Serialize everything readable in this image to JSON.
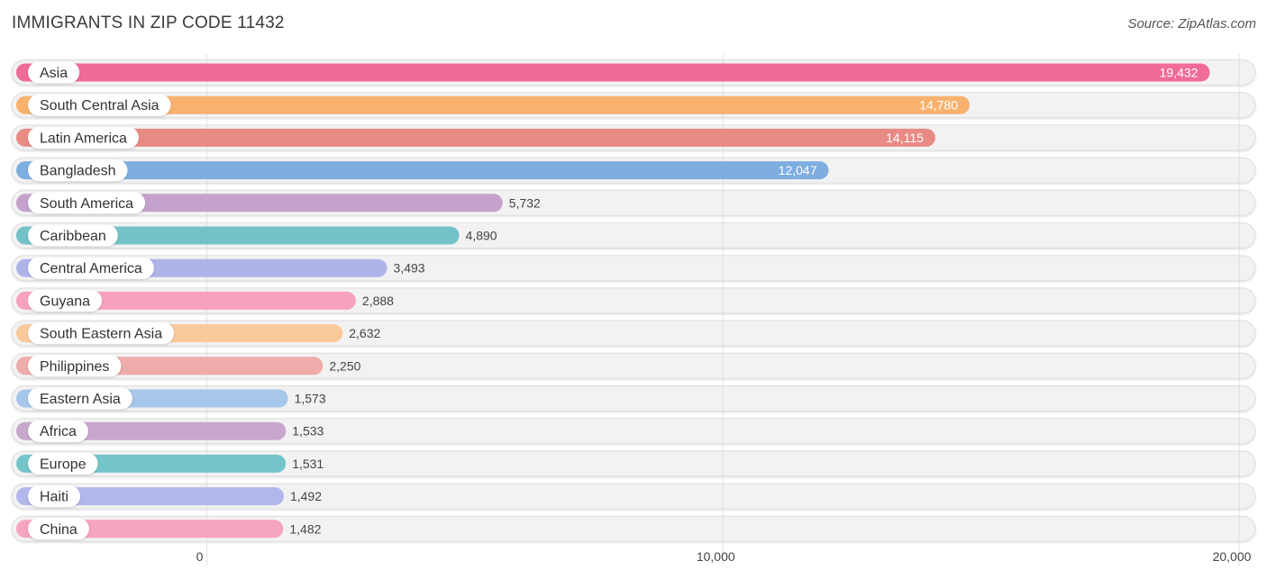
{
  "header": {
    "title": "IMMIGRANTS IN ZIP CODE 11432",
    "source": "Source: ZipAtlas.com"
  },
  "chart_data": {
    "type": "bar",
    "orientation": "horizontal",
    "title": "IMMIGRANTS IN ZIP CODE 11432",
    "xlabel": "",
    "ylabel": "",
    "xlim": [
      0,
      20000
    ],
    "ticks": [
      0,
      10000,
      20000
    ],
    "tick_labels": [
      "0",
      "10,000",
      "20,000"
    ],
    "grid": true,
    "categories": [
      "Asia",
      "South Central Asia",
      "Latin America",
      "Bangladesh",
      "South America",
      "Caribbean",
      "Central America",
      "Guyana",
      "South Eastern Asia",
      "Philippines",
      "Eastern Asia",
      "Africa",
      "Europe",
      "Haiti",
      "China"
    ],
    "values": [
      19432,
      14780,
      14115,
      12047,
      5732,
      4890,
      3493,
      2888,
      2632,
      2250,
      1573,
      1533,
      1531,
      1492,
      1482
    ],
    "value_labels": [
      "19,432",
      "14,780",
      "14,115",
      "12,047",
      "5,732",
      "4,890",
      "3,493",
      "2,888",
      "2,632",
      "2,250",
      "1,573",
      "1,533",
      "1,531",
      "1,492",
      "1,482"
    ],
    "colors": [
      "#f06b96",
      "#f8b26e",
      "#e98b85",
      "#7eaee0",
      "#c4a2cc",
      "#73c2c8",
      "#afb4e8",
      "#f6a2bd",
      "#f9c99b",
      "#eeacab",
      "#a6c7ea",
      "#c7a8cc",
      "#74c5ca",
      "#b2b7eb",
      "#f6a5c0"
    ]
  }
}
